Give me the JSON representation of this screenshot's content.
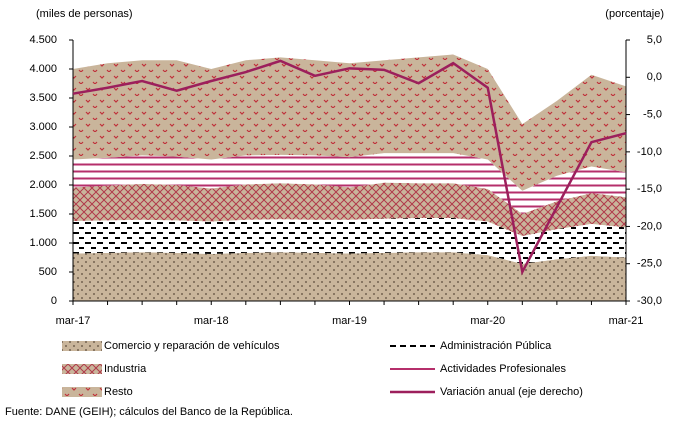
{
  "chart_data": {
    "type": "stacked-area-line",
    "ylabel": "(miles de personas)",
    "y2label": "(porcentaje)",
    "source": "Fuente: DANE (GEIH); cálculos del Banco de la República.",
    "categories": [
      "mar-17",
      null,
      null,
      null,
      "mar-18",
      null,
      null,
      null,
      "mar-19",
      null,
      null,
      null,
      "mar-20",
      null,
      null,
      null,
      "mar-21"
    ],
    "ylim": [
      0,
      4500
    ],
    "yticks": [
      0,
      {
        "value": 500,
        "label": "500"
      },
      {
        "value": 1000,
        "label": "1.000"
      },
      {
        "value": 1500,
        "label": "1.500"
      },
      {
        "value": 2000,
        "label": "2.000"
      },
      {
        "value": 2500,
        "label": "2.500"
      },
      {
        "value": 3000,
        "label": "3.000"
      },
      {
        "value": 3500,
        "label": "3.500"
      },
      {
        "value": 4000,
        "label": "4.000"
      },
      {
        "value": 4500,
        "label": "4.500"
      }
    ],
    "y2lim": [
      -30,
      5
    ],
    "y2ticks": [
      {
        "value": -30,
        "label": "-30,0"
      },
      {
        "value": -25,
        "label": "-25,0"
      },
      {
        "value": -20,
        "label": "-20,0"
      },
      {
        "value": -15,
        "label": "-15,0"
      },
      {
        "value": -10,
        "label": "-10,0"
      },
      {
        "value": -5,
        "label": "-5,0"
      },
      {
        "value": 0,
        "label": "0,0"
      },
      {
        "value": 5,
        "label": "5,0"
      }
    ],
    "series": [
      {
        "name": "Comercio y reparación de vehículos",
        "color": "#c9b59b",
        "pattern": "dots",
        "values": [
          820,
          830,
          840,
          830,
          810,
          830,
          840,
          830,
          820,
          830,
          840,
          840,
          790,
          640,
          720,
          780,
          750
        ]
      },
      {
        "name": "Administración Pública",
        "color": "#ffffff",
        "pattern": "dashes",
        "values": [
          560,
          560,
          560,
          560,
          560,
          570,
          570,
          570,
          580,
          590,
          590,
          590,
          580,
          480,
          520,
          550,
          520
        ]
      },
      {
        "name": "Industria",
        "color": "#c9b59b",
        "pattern": "crosshatch",
        "values": [
          580,
          600,
          620,
          610,
          570,
          610,
          620,
          610,
          560,
          620,
          600,
          600,
          560,
          380,
          480,
          530,
          520
        ]
      },
      {
        "name": "Actividades Profesionales",
        "color": "#ffffff",
        "pattern": "hlines",
        "values": [
          480,
          480,
          490,
          490,
          500,
          500,
          490,
          500,
          520,
          510,
          520,
          520,
          510,
          400,
          440,
          460,
          430
        ]
      },
      {
        "name": "Resto",
        "color": "#c9b59b",
        "pattern": "chevrons",
        "values": [
          1560,
          1630,
          1640,
          1660,
          1560,
          1640,
          1680,
          1640,
          1620,
          1600,
          1650,
          1700,
          1560,
          1150,
          1290,
          1580,
          1480
        ]
      },
      {
        "name": "Variación anual (eje derecho)",
        "color": "#9c1f5c",
        "axis": "y2",
        "values": [
          -2.2,
          -1.4,
          -0.5,
          -1.8,
          -0.5,
          0.7,
          2.2,
          0.2,
          1.2,
          1.0,
          -0.8,
          1.9,
          -1.4,
          -26.1,
          -17.4,
          -8.7,
          -7.5
        ]
      }
    ]
  }
}
